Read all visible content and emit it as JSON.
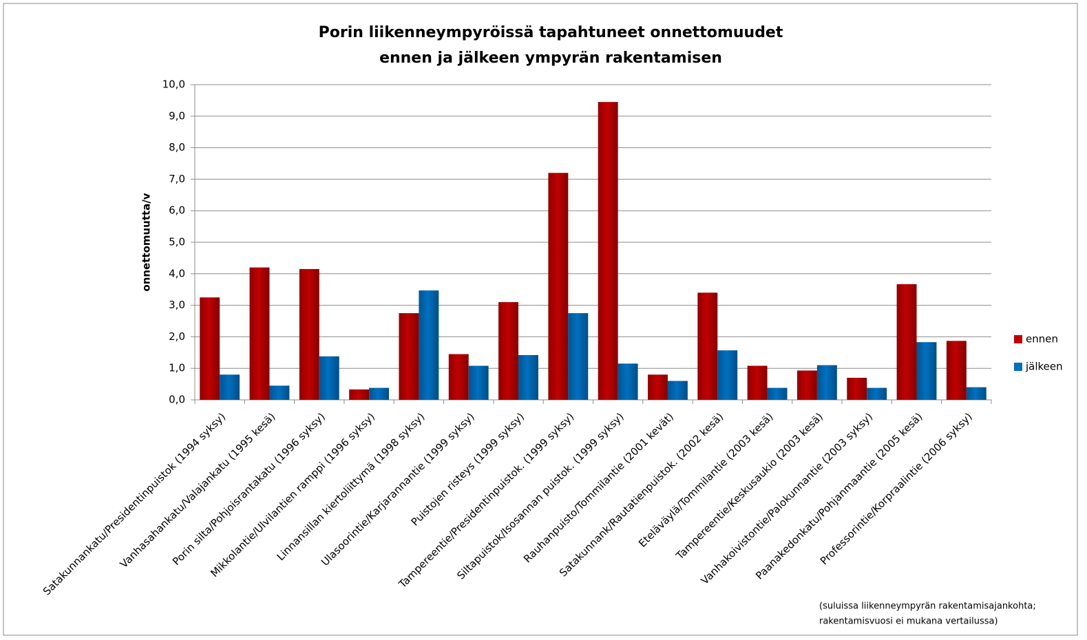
{
  "chart_data": {
    "type": "bar",
    "title": [
      "Porin liikenneympyröissä tapahtuneet onnettomuudet",
      "ennen ja jälkeen ympyrän rakentamisen"
    ],
    "y_label": "onnettomuutta/v",
    "categories": [
      "Satakunnankatu/Presidentinpuistok (1994 syksy)",
      "Vanhasahankatu/Valajankatu (1995 kesä)",
      "Porin silta/Pohjoisrantakatu (1996 syksy)",
      "Mikkolantie/Ulvilantien ramppi (1996 syksy)",
      "Linnansillan kiertoliittymä (1998 syksy)",
      "Ulasoorintie/Karjarannantie (1999 syksy)",
      "Puistojen risteys (1999 syksy)",
      "Tampereentie/Presidentinpuistok. (1999 syksy)",
      "Siltapuistok/Isosannan puistok. (1999 syksy)",
      "Rauhanpuisto/Tommilantie (2001 kevät)",
      "Satakunnank/Rautatienpuistok. (2002 kesä)",
      "Eteläväylä/Tommilantie (2003 kesä)",
      "Tampereentie/Keskusaukio (2003 kesä)",
      "Vanhakoivistontie/Palokunnantie (2003 syksy)",
      "Paanakedonkatu/Pohjanmaantie (2005 kesä)",
      "Professorintie/Korpraalintie (2006 syksy)"
    ],
    "series": [
      {
        "name": "ennen",
        "color": "#c00000",
        "values": [
          3.25,
          4.2,
          4.15,
          0.33,
          2.75,
          1.45,
          3.1,
          7.2,
          9.45,
          0.8,
          3.4,
          1.08,
          0.93,
          0.7,
          3.67,
          1.87
        ]
      },
      {
        "name": "jälkeen",
        "color": "#0070c0",
        "values": [
          0.8,
          0.45,
          1.38,
          0.38,
          3.47,
          1.08,
          1.42,
          2.75,
          1.15,
          0.6,
          1.57,
          0.38,
          1.1,
          0.38,
          1.83,
          0.4
        ]
      }
    ],
    "ylim": [
      0,
      10
    ],
    "yticks": [
      {
        "value": 0,
        "label": "0,0"
      },
      {
        "value": 1,
        "label": "1,0"
      },
      {
        "value": 2,
        "label": "2,0"
      },
      {
        "value": 3,
        "label": "3,0"
      },
      {
        "value": 4,
        "label": "4,0"
      },
      {
        "value": 5,
        "label": "5,0"
      },
      {
        "value": 6,
        "label": "6,0"
      },
      {
        "value": 7,
        "label": "7,0"
      },
      {
        "value": 8,
        "label": "8,0"
      },
      {
        "value": 9,
        "label": "9,0"
      },
      {
        "value": 10,
        "label": "10,0"
      }
    ],
    "grid": true,
    "legend": "right",
    "note": [
      "(suluissa liikenneympyrän rakentamisajankohta;",
      "rakentamisvuosi ei mukana vertailussa)"
    ]
  }
}
